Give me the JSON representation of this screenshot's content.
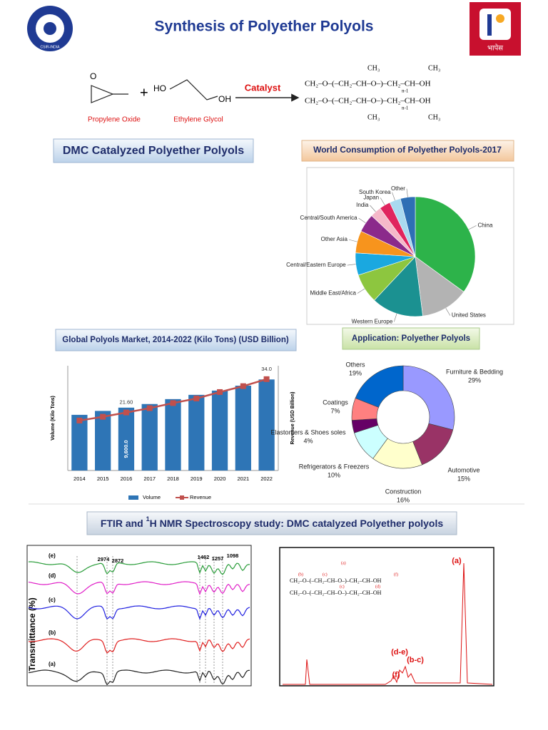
{
  "header": {
    "title": "Synthesis of Polyether Polyols",
    "left_logo_text": "CSIR-INDIA",
    "right_logo_text": "भापेस"
  },
  "reaction": {
    "reactant_1": "Propylene Oxide",
    "reactant_2": "Ethylene Glycol",
    "catalyst": "Catalyst",
    "plus": "+",
    "epoxide_oxygen": "O",
    "glycol_left": "HO",
    "glycol_right": "OH",
    "product_lines": [
      "CH₂–O–(–CH₂–CH–O–)–CH₂–CH–OH",
      "CH₂–O–(–CH₂–CH–O–)–CH₂–CH–OH"
    ],
    "product_methyls": [
      "CH₃",
      "CH₃",
      "CH₃",
      "CH₃"
    ],
    "repeat_subscripts": [
      "n-1",
      "n-1"
    ]
  },
  "sections": {
    "dmc": "DMC Catalyzed Polyether Polyols",
    "world": "World Consumption of Polyether Polyols-2017",
    "market": "Global Polyols Market, 2014-2022 (Kilo Tons) (USD Billion)",
    "application": "Application: Polyether Polyols",
    "spectroscopy": [
      "FTIR and ",
      "1",
      "H NMR Spectroscopy study: DMC catalyzed Polyether polyols"
    ]
  },
  "chart_data": [
    {
      "type": "pie",
      "categories": [
        "China",
        "United States",
        "Western Europe",
        "Middle East/Africa",
        "Central/Eastern Europe",
        "Other Asia",
        "Central/South America",
        "India",
        "Japan",
        "South Korea",
        "Other"
      ],
      "values": [
        35,
        13,
        14,
        8,
        6,
        6,
        5,
        3,
        3,
        3,
        4
      ],
      "colors": [
        "#2db34a",
        "#b3b3b3",
        "#1b9191",
        "#8dc63f",
        "#1aa8e0",
        "#f7941d",
        "#8b2a8b",
        "#f5b8c9",
        "#e0245e",
        "#a9d9f0",
        "#2e6fb5"
      ]
    },
    {
      "type": "bar",
      "categories": [
        "2014",
        "2015",
        "2016",
        "2017",
        "2018",
        "2019",
        "2020",
        "2021",
        "2022"
      ],
      "y_label": "Volume (Kilo Tons)",
      "y2_label": "Revenue (USD Billion)",
      "ylim": [
        0,
        16000
      ],
      "y2lim": [
        0,
        39
      ],
      "series": [
        {
          "name": "Volume",
          "color": "#2e75b6",
          "values": [
            8500,
            9100,
            9600,
            10150,
            10900,
            11550,
            12200,
            12950,
            13900
          ],
          "value_labels": [
            null,
            null,
            "9,600.0",
            null,
            null,
            null,
            null,
            null,
            null
          ]
        },
        {
          "name": "Revenue",
          "type": "line",
          "axis": "y2",
          "color": "#c0504d",
          "values": [
            18.6,
            20.0,
            21.6,
            23.2,
            25.1,
            26.8,
            29.2,
            31.4,
            34.0
          ],
          "value_labels": [
            null,
            null,
            "21.60",
            null,
            null,
            null,
            null,
            null,
            "34.0"
          ]
        }
      ]
    },
    {
      "type": "donut",
      "categories": [
        "Furniture & Bedding",
        "Automotive",
        "Construction",
        "Refrigerators & Freezers",
        "Elastomers & Shoes soles",
        "Coatings",
        "Others"
      ],
      "values": [
        29,
        15,
        16,
        10,
        4,
        7,
        19
      ],
      "value_labels": [
        "29%",
        "15%",
        "16%",
        "10%",
        "4%",
        "7%",
        "19%"
      ],
      "colors": [
        "#9999ff",
        "#993366",
        "#ffffcc",
        "#ccffff",
        "#660066",
        "#ff8080",
        "#0066cc"
      ]
    }
  ],
  "ftir": {
    "y_label": "Transmittance (%)",
    "trace_labels": [
      "(e)",
      "(d)",
      "(c)",
      "(b)",
      "(a)"
    ],
    "peak_labels": [
      "2974",
      "2872",
      "1462",
      "1257",
      "1098"
    ]
  },
  "nmr": {
    "peak_labels": [
      "(a)",
      "(d-e)",
      "(b-c)",
      "(f)"
    ],
    "structure_lines": [
      "CH₂–O–(–CH₂–CH–O–)–CH₂–CH–OH",
      "CH₂–O–(–CH₂–CH–O–)–CH₂–CH–OH"
    ],
    "structure_labels": [
      "(a)",
      "(b)",
      "(c)",
      "(c)",
      "(d)",
      "(f)"
    ]
  }
}
